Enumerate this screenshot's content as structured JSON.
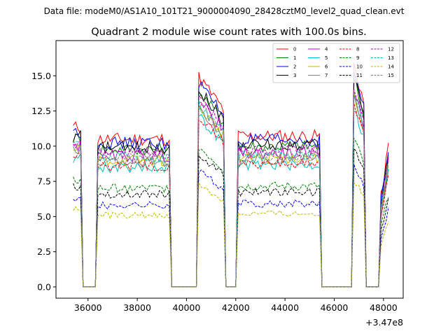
{
  "suptitle": "Data file: modeM0/AS1A10_101T21_9000004090_28428cztM0_level2_quad_clean.evt",
  "chart_data": {
    "type": "line",
    "title": "Quadrant 2 module wise count rates with 100.0s bins.",
    "xlabel": "",
    "ylabel": "",
    "x_offset_text": "+3.47e8",
    "xlim": [
      34700,
      48800
    ],
    "ylim": [
      -0.8,
      17.5
    ],
    "xticks": [
      36000,
      38000,
      40000,
      42000,
      44000,
      46000,
      48000
    ],
    "xtick_labels": [
      "36000",
      "38000",
      "40000",
      "42000",
      "44000",
      "46000",
      "48000"
    ],
    "yticks": [
      0.0,
      2.5,
      5.0,
      7.5,
      10.0,
      12.5,
      15.0
    ],
    "ytick_labels": [
      "0.0",
      "2.5",
      "5.0",
      "7.5",
      "10.0",
      "12.5",
      "15.0"
    ],
    "bin_seconds": 100,
    "legend_position": "top-right",
    "segments": [
      {
        "start": 35400,
        "end": 35700
      },
      {
        "start": 36400,
        "end": 39300
      },
      {
        "start": 40500,
        "end": 41500
      },
      {
        "start": 42100,
        "end": 45400
      },
      {
        "start": 46800,
        "end": 47200
      },
      {
        "start": 47900,
        "end": 48200
      }
    ],
    "series": [
      {
        "name": "0",
        "color": "#ff0000",
        "dash": false,
        "level": 10.5
      },
      {
        "name": "1",
        "color": "#008000",
        "dash": false,
        "level": 9.8
      },
      {
        "name": "2",
        "color": "#0000ff",
        "dash": false,
        "level": 10.2
      },
      {
        "name": "3",
        "color": "#000000",
        "dash": false,
        "level": 9.9
      },
      {
        "name": "4",
        "color": "#bf00bf",
        "dash": false,
        "level": 9.3
      },
      {
        "name": "5",
        "color": "#00bfbf",
        "dash": false,
        "level": 8.5
      },
      {
        "name": "6",
        "color": "#bfbf00",
        "dash": false,
        "level": 9.0
      },
      {
        "name": "7",
        "color": "#808080",
        "dash": false,
        "level": 8.9
      },
      {
        "name": "8",
        "color": "#ff0000",
        "dash": true,
        "level": 8.6
      },
      {
        "name": "9",
        "color": "#008000",
        "dash": true,
        "level": 7.0
      },
      {
        "name": "10",
        "color": "#0000ff",
        "dash": true,
        "level": 5.8
      },
      {
        "name": "11",
        "color": "#000000",
        "dash": true,
        "level": 6.6
      },
      {
        "name": "12",
        "color": "#bf00bf",
        "dash": true,
        "level": 9.5
      },
      {
        "name": "13",
        "color": "#00bfbf",
        "dash": true,
        "level": 9.2
      },
      {
        "name": "14",
        "color": "#bfbf00",
        "dash": true,
        "level": 5.1
      },
      {
        "name": "15",
        "color": "#808080",
        "dash": true,
        "level": 9.1
      }
    ]
  }
}
